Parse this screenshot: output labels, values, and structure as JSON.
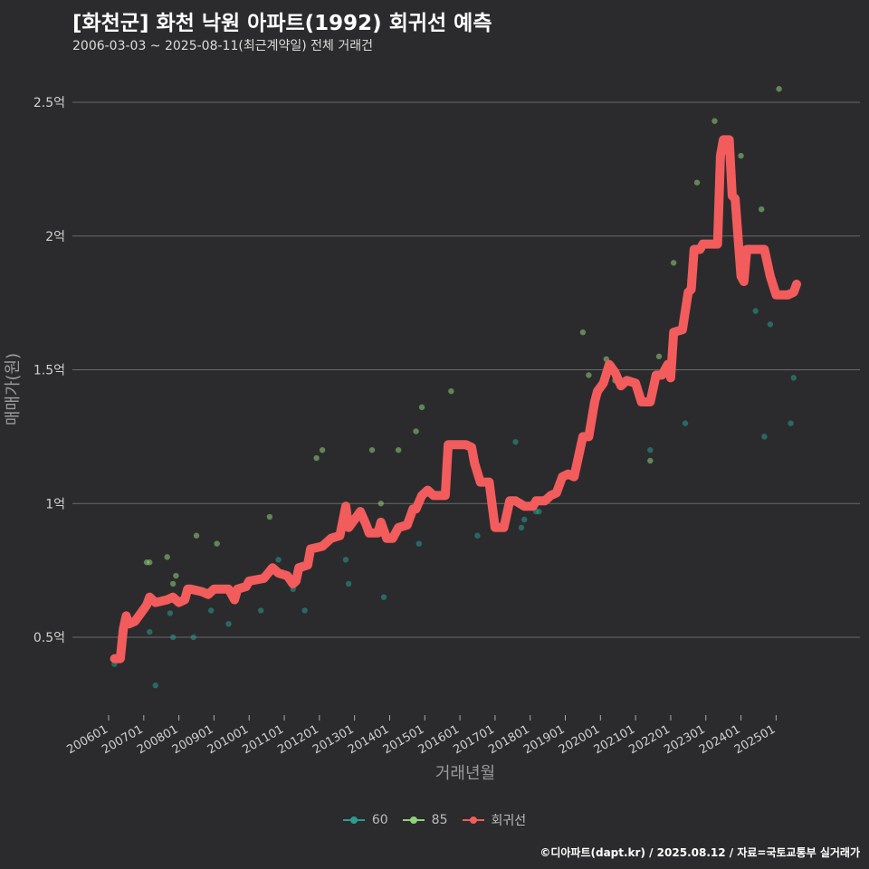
{
  "title": "[화천군] 화천 낙원 아파트(1992) 회귀선 예측",
  "subtitle": "2006-03-03 ~ 2025-08-11(최근계약일) 전체 거래건",
  "caption": "©디아파트(dapt.kr) / 2025.08.12 / 자료=국토교통부 실거래가",
  "colors": {
    "background": "#2b2b2d",
    "grid": "#6a6a6a",
    "series_60": "#2a9d8f",
    "series_85": "#8fd17a",
    "regression": "#f25c5c"
  },
  "chart_data": {
    "type": "scatter",
    "xlabel": "거래년월",
    "ylabel": "매매가(원)",
    "xlim": [
      "2006-01",
      "2025-08"
    ],
    "ylim": [
      0.25,
      2.7
    ],
    "y_unit": "억",
    "y_ticks": [
      {
        "value": 0.5,
        "label": "0.5억"
      },
      {
        "value": 1.0,
        "label": "1억"
      },
      {
        "value": 1.5,
        "label": "1.5억"
      },
      {
        "value": 2.0,
        "label": "2억"
      },
      {
        "value": 2.5,
        "label": "2.5억"
      }
    ],
    "x_ticks": [
      {
        "value": "2006-01",
        "label": "200601"
      },
      {
        "value": "2007-01",
        "label": "200701"
      },
      {
        "value": "2008-01",
        "label": "200801"
      },
      {
        "value": "2009-01",
        "label": "200901"
      },
      {
        "value": "2010-01",
        "label": "201001"
      },
      {
        "value": "2011-01",
        "label": "201101"
      },
      {
        "value": "2012-01",
        "label": "201201"
      },
      {
        "value": "2013-01",
        "label": "201301"
      },
      {
        "value": "2014-01",
        "label": "201401"
      },
      {
        "value": "2015-01",
        "label": "201501"
      },
      {
        "value": "2016-01",
        "label": "201601"
      },
      {
        "value": "2017-01",
        "label": "201701"
      },
      {
        "value": "2018-01",
        "label": "201801"
      },
      {
        "value": "2019-01",
        "label": "201901"
      },
      {
        "value": "2020-01",
        "label": "202001"
      },
      {
        "value": "2021-01",
        "label": "202101"
      },
      {
        "value": "2022-01",
        "label": "202201"
      },
      {
        "value": "2023-01",
        "label": "202301"
      },
      {
        "value": "2024-01",
        "label": "202401"
      },
      {
        "value": "2025-01",
        "label": "202501"
      }
    ],
    "legend": [
      {
        "name": "60",
        "kind": "point",
        "color": "#2a9d8f"
      },
      {
        "name": "85",
        "kind": "point",
        "color": "#8fd17a"
      },
      {
        "name": "회귀선",
        "kind": "line",
        "color": "#f25c5c"
      }
    ],
    "series": [
      {
        "name": "60",
        "points": [
          [
            "2006-03",
            0.4
          ],
          [
            "2007-03",
            0.52
          ],
          [
            "2007-05",
            0.32
          ],
          [
            "2007-10",
            0.59
          ],
          [
            "2007-11",
            0.5
          ],
          [
            "2008-06",
            0.5
          ],
          [
            "2008-12",
            0.6
          ],
          [
            "2009-06",
            0.55
          ],
          [
            "2010-05",
            0.6
          ],
          [
            "2010-11",
            0.79
          ],
          [
            "2011-03",
            0.71
          ],
          [
            "2011-04",
            0.68
          ],
          [
            "2011-08",
            0.6
          ],
          [
            "2012-10",
            0.79
          ],
          [
            "2012-11",
            0.7
          ],
          [
            "2013-11",
            0.65
          ],
          [
            "2013-12",
            0.87
          ],
          [
            "2014-11",
            0.85
          ],
          [
            "2016-07",
            0.88
          ],
          [
            "2017-08",
            1.23
          ],
          [
            "2017-10",
            0.91
          ],
          [
            "2017-11",
            0.94
          ],
          [
            "2018-03",
            0.97
          ],
          [
            "2018-04",
            0.97
          ],
          [
            "2021-06",
            1.2
          ],
          [
            "2022-06",
            1.3
          ],
          [
            "2024-06",
            1.72
          ],
          [
            "2024-09",
            1.25
          ],
          [
            "2024-11",
            1.67
          ],
          [
            "2025-06",
            1.3
          ],
          [
            "2025-07",
            1.47
          ]
        ]
      },
      {
        "name": "85",
        "points": [
          [
            "2007-02",
            0.78
          ],
          [
            "2007-03",
            0.78
          ],
          [
            "2007-09",
            0.8
          ],
          [
            "2007-11",
            0.7
          ],
          [
            "2007-12",
            0.73
          ],
          [
            "2008-07",
            0.88
          ],
          [
            "2009-02",
            0.85
          ],
          [
            "2010-08",
            0.95
          ],
          [
            "2011-12",
            1.17
          ],
          [
            "2012-02",
            1.2
          ],
          [
            "2013-07",
            1.2
          ],
          [
            "2013-10",
            1.0
          ],
          [
            "2014-04",
            1.2
          ],
          [
            "2014-10",
            1.27
          ],
          [
            "2014-12",
            1.36
          ],
          [
            "2015-10",
            1.42
          ],
          [
            "2019-07",
            1.64
          ],
          [
            "2019-09",
            1.48
          ],
          [
            "2020-03",
            1.54
          ],
          [
            "2020-06",
            1.46
          ],
          [
            "2021-06",
            1.16
          ],
          [
            "2021-09",
            1.55
          ],
          [
            "2022-02",
            1.9
          ],
          [
            "2022-10",
            2.2
          ],
          [
            "2023-04",
            2.43
          ],
          [
            "2024-01",
            2.3
          ],
          [
            "2024-08",
            2.1
          ],
          [
            "2025-02",
            2.55
          ]
        ]
      },
      {
        "name": "회귀선",
        "points": [
          [
            "2006-03",
            0.42
          ],
          [
            "2006-05",
            0.42
          ],
          [
            "2006-06",
            0.53
          ],
          [
            "2006-07",
            0.58
          ],
          [
            "2006-08",
            0.55
          ],
          [
            "2006-10",
            0.56
          ],
          [
            "2006-12",
            0.59
          ],
          [
            "2007-02",
            0.62
          ],
          [
            "2007-03",
            0.65
          ],
          [
            "2007-05",
            0.63
          ],
          [
            "2007-09",
            0.64
          ],
          [
            "2007-11",
            0.65
          ],
          [
            "2008-01",
            0.63
          ],
          [
            "2008-03",
            0.64
          ],
          [
            "2008-04",
            0.68
          ],
          [
            "2008-05",
            0.68
          ],
          [
            "2008-09",
            0.67
          ],
          [
            "2008-11",
            0.66
          ],
          [
            "2009-01",
            0.68
          ],
          [
            "2009-06",
            0.68
          ],
          [
            "2009-08",
            0.64
          ],
          [
            "2009-09",
            0.68
          ],
          [
            "2009-12",
            0.69
          ],
          [
            "2010-01",
            0.71
          ],
          [
            "2010-06",
            0.72
          ],
          [
            "2010-09",
            0.76
          ],
          [
            "2010-11",
            0.74
          ],
          [
            "2011-02",
            0.73
          ],
          [
            "2011-04",
            0.7
          ],
          [
            "2011-05",
            0.71
          ],
          [
            "2011-06",
            0.76
          ],
          [
            "2011-09",
            0.77
          ],
          [
            "2011-10",
            0.83
          ],
          [
            "2012-02",
            0.84
          ],
          [
            "2012-04",
            0.86
          ],
          [
            "2012-05",
            0.87
          ],
          [
            "2012-08",
            0.88
          ],
          [
            "2012-10",
            0.99
          ],
          [
            "2012-11",
            0.91
          ],
          [
            "2013-01",
            0.94
          ],
          [
            "2013-03",
            0.97
          ],
          [
            "2013-05",
            0.92
          ],
          [
            "2013-06",
            0.89
          ],
          [
            "2013-09",
            0.89
          ],
          [
            "2013-10",
            0.93
          ],
          [
            "2013-12",
            0.87
          ],
          [
            "2014-02",
            0.87
          ],
          [
            "2014-04",
            0.91
          ],
          [
            "2014-07",
            0.92
          ],
          [
            "2014-09",
            0.98
          ],
          [
            "2014-10",
            0.98
          ],
          [
            "2014-12",
            1.03
          ],
          [
            "2015-02",
            1.05
          ],
          [
            "2015-04",
            1.03
          ],
          [
            "2015-08",
            1.03
          ],
          [
            "2015-09",
            1.22
          ],
          [
            "2016-03",
            1.22
          ],
          [
            "2016-05",
            1.21
          ],
          [
            "2016-06",
            1.15
          ],
          [
            "2016-08",
            1.08
          ],
          [
            "2016-11",
            1.08
          ],
          [
            "2017-01",
            0.91
          ],
          [
            "2017-04",
            0.91
          ],
          [
            "2017-06",
            1.01
          ],
          [
            "2017-08",
            1.01
          ],
          [
            "2017-11",
            0.99
          ],
          [
            "2018-02",
            0.99
          ],
          [
            "2018-03",
            1.01
          ],
          [
            "2018-06",
            1.01
          ],
          [
            "2018-08",
            1.03
          ],
          [
            "2018-10",
            1.04
          ],
          [
            "2018-12",
            1.1
          ],
          [
            "2019-02",
            1.11
          ],
          [
            "2019-04",
            1.1
          ],
          [
            "2019-07",
            1.25
          ],
          [
            "2019-09",
            1.25
          ],
          [
            "2019-11",
            1.38
          ],
          [
            "2019-12",
            1.42
          ],
          [
            "2020-02",
            1.45
          ],
          [
            "2020-04",
            1.52
          ],
          [
            "2020-06",
            1.49
          ],
          [
            "2020-08",
            1.44
          ],
          [
            "2020-10",
            1.46
          ],
          [
            "2021-01",
            1.45
          ],
          [
            "2021-03",
            1.38
          ],
          [
            "2021-06",
            1.38
          ],
          [
            "2021-08",
            1.48
          ],
          [
            "2021-10",
            1.48
          ],
          [
            "2021-12",
            1.52
          ],
          [
            "2022-01",
            1.47
          ],
          [
            "2022-02",
            1.64
          ],
          [
            "2022-05",
            1.65
          ],
          [
            "2022-07",
            1.79
          ],
          [
            "2022-08",
            1.8
          ],
          [
            "2022-09",
            1.95
          ],
          [
            "2022-11",
            1.95
          ],
          [
            "2022-12",
            1.97
          ],
          [
            "2023-05",
            1.97
          ],
          [
            "2023-06",
            2.3
          ],
          [
            "2023-07",
            2.36
          ],
          [
            "2023-09",
            2.36
          ],
          [
            "2023-10",
            2.15
          ],
          [
            "2023-11",
            2.14
          ],
          [
            "2024-01",
            1.85
          ],
          [
            "2024-02",
            1.83
          ],
          [
            "2024-03",
            1.95
          ],
          [
            "2024-09",
            1.95
          ],
          [
            "2024-11",
            1.85
          ],
          [
            "2025-01",
            1.78
          ],
          [
            "2025-05",
            1.78
          ],
          [
            "2025-07",
            1.79
          ],
          [
            "2025-08",
            1.82
          ]
        ]
      }
    ]
  }
}
